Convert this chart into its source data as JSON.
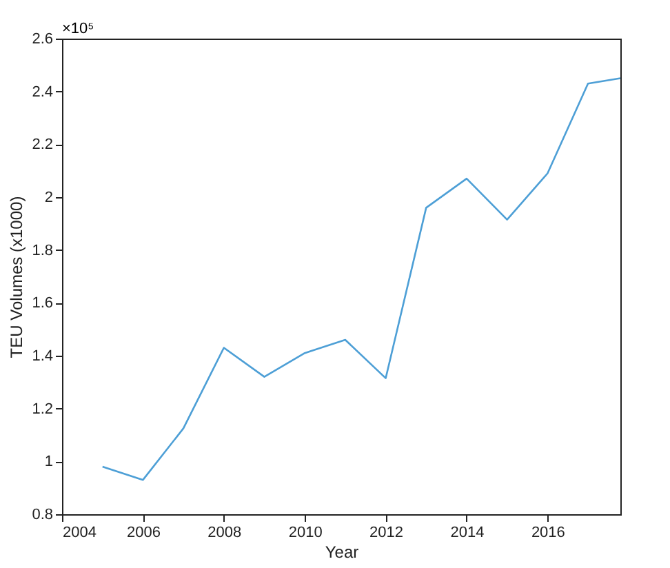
{
  "chart_data": {
    "type": "line",
    "xlabel": "Year",
    "ylabel": "TEU Volumes (x1000)",
    "annotations": [
      "×10⁵"
    ],
    "x": [
      2005,
      2006,
      2007,
      2008,
      2009,
      2010,
      2011,
      2012,
      2013,
      2014,
      2015,
      2016,
      2017,
      2017.8
    ],
    "series": [
      {
        "color": "#4d9fd6",
        "values": [
          0.98,
          0.93,
          1.125,
          1.43,
          1.32,
          1.41,
          1.46,
          1.315,
          1.96,
          2.07,
          1.915,
          2.09,
          2.43,
          2.45
        ]
      }
    ],
    "xlim": [
      2004,
      2017.8
    ],
    "xticks": [
      2004,
      2006,
      2008,
      2010,
      2012,
      2014,
      2016
    ],
    "ylim": [
      0.8,
      2.6
    ],
    "yticks": [
      0.8,
      1,
      1.2,
      1.4,
      1.6,
      1.8,
      2,
      2.2,
      2.4,
      2.6
    ],
    "grid": false,
    "legend": false
  }
}
